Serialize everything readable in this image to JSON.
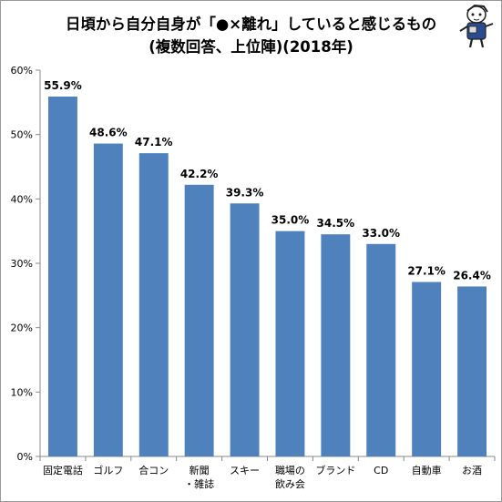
{
  "chart_data": {
    "type": "bar",
    "title_lines": [
      "日頃から自分自身が「●×離れ」していると感じるもの",
      "(複数回答、上位陣)(2018年)"
    ],
    "categories": [
      [
        "固定電話"
      ],
      [
        "ゴルフ"
      ],
      [
        "合コン"
      ],
      [
        "新聞",
        "・雑誌"
      ],
      [
        "スキー"
      ],
      [
        "職場の",
        "飲み会"
      ],
      [
        "ブランド"
      ],
      [
        "CD"
      ],
      [
        "自動車"
      ],
      [
        "お酒"
      ]
    ],
    "values": [
      55.9,
      48.6,
      47.1,
      42.2,
      39.3,
      35.0,
      34.5,
      33.0,
      27.1,
      26.4
    ],
    "data_labels": [
      "55.9%",
      "48.6%",
      "47.1%",
      "42.2%",
      "39.3%",
      "35.0%",
      "34.5%",
      "33.0%",
      "27.1%",
      "26.4%"
    ],
    "yticks": [
      0,
      10,
      20,
      30,
      40,
      50,
      60
    ],
    "ytick_labels": [
      "0%",
      "10%",
      "20%",
      "30%",
      "40%",
      "50%",
      "60%"
    ],
    "ylim": [
      0,
      60
    ],
    "grid": false,
    "bar_color": "#4f81bd",
    "xlabel": "",
    "ylabel": ""
  },
  "mascot_icon": "reporter-mascot-icon"
}
